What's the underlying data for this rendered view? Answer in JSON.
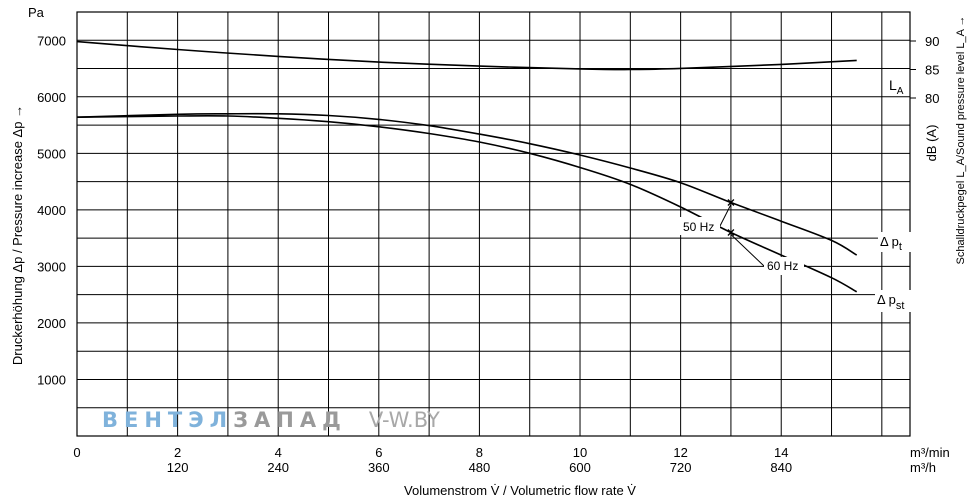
{
  "chart_data": {
    "type": "line",
    "xlabel": "Volumenstrom V̇ / Volumetric flow rate V̇",
    "x_unit_primary": "m³/min",
    "x_unit_secondary": "m³/h",
    "xlim": [
      0,
      16.56
    ],
    "x_ticks": [
      0,
      2,
      4,
      6,
      8,
      10,
      12,
      14
    ],
    "x_ticks_secondary": [
      "120",
      "240",
      "360",
      "480",
      "600",
      "720",
      "840"
    ],
    "ylabel": "Druckerhöhung Δp / Pressure increase  Δp →",
    "y_unit": "Pa",
    "ylim": [
      0,
      7500
    ],
    "y_ticks": [
      1000,
      2000,
      3000,
      4000,
      5000,
      6000,
      7000
    ],
    "y2label": "Schalldruckpegel L_A/Sound pressure level L_A →",
    "y2_unit": "dB (A)",
    "y2_ticks": [
      80,
      85,
      90
    ],
    "grid": true,
    "series": [
      {
        "name": "L_A",
        "axis": "right",
        "x": [
          0,
          2,
          4,
          6,
          8,
          10,
          11,
          12,
          14,
          15.5
        ],
        "y": [
          89.9,
          88.5,
          87.3,
          86.3,
          85.6,
          85.1,
          85.0,
          85.2,
          85.9,
          86.6
        ]
      },
      {
        "name": "Δ p_t",
        "axis": "left",
        "x": [
          0,
          2,
          3,
          4,
          5,
          6,
          7,
          8,
          9,
          10,
          11,
          12,
          13,
          14,
          15,
          15.5
        ],
        "y": [
          5640,
          5690,
          5700,
          5700,
          5670,
          5600,
          5490,
          5340,
          5170,
          4970,
          4740,
          4480,
          4130,
          3800,
          3460,
          3200
        ]
      },
      {
        "name": "Δ p_st",
        "axis": "left",
        "x": [
          0,
          2,
          3,
          4,
          5,
          6,
          7,
          8,
          9,
          10,
          11,
          12,
          13,
          14,
          15,
          15.5
        ],
        "y": [
          5640,
          5660,
          5660,
          5620,
          5560,
          5470,
          5350,
          5200,
          5000,
          4750,
          4450,
          4050,
          3600,
          3200,
          2800,
          2550
        ]
      }
    ],
    "markers": [
      {
        "series": "Δ p_t",
        "x": 13.0,
        "y": 4130
      },
      {
        "series": "Δ p_st",
        "x": 13.0,
        "y": 3600
      }
    ],
    "annotations": [
      "50 Hz",
      "60 Hz"
    ]
  },
  "labels": {
    "la": "L",
    "la_sub": "A",
    "pt": "Δ p",
    "pt_sub": "t",
    "pst": "Δ p",
    "pst_sub": "st",
    "hz50": "50 Hz",
    "hz60": "60 Hz"
  },
  "watermark": {
    "part1": "ВЕНТЭЛ",
    "part2": "ЗАПАД",
    "part3": "V-W.BY"
  },
  "colors": {
    "line": "#000000",
    "watermark_blue": "#7fb2db",
    "watermark_gray": "#9a9a9a"
  }
}
